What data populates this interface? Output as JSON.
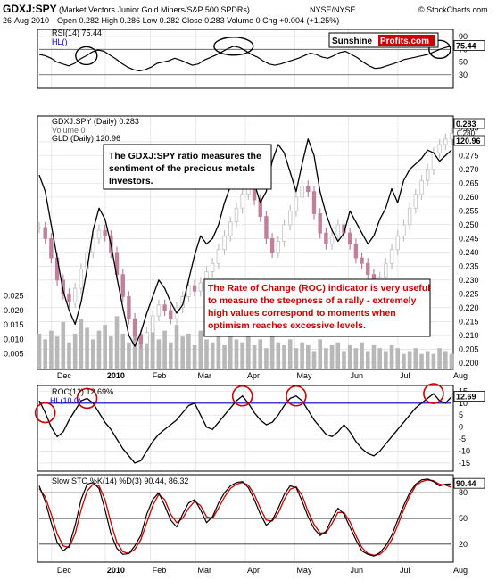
{
  "header": {
    "symbol": "GDXJ:SPY",
    "description": "(Market Vectors Junior Gold Miners/S&P 500 SPDRs)",
    "exchange": "NYSE/NYSE",
    "date": "26-Aug-2010",
    "quote": "Open 0.282  High 0.286  Low 0.282  Close 0.283  Volume 0  Chg +0.004 (+1.25%)",
    "credit": "© StockCharts.com",
    "logo_left": "Sunshine",
    "logo_right": "Profits.com"
  },
  "colors": {
    "price_up": "#c0c0c0",
    "price_down": "#c0809a",
    "gld_line": "#000000",
    "volume": "#b8b8b8",
    "hline": "#0000cc",
    "circle": "#cc0000",
    "annotation_red": "#cc0000",
    "stoch_d": "#cc0000",
    "grid": "#d8d8d8"
  },
  "annotations": {
    "ratio_note": "The GDXJ:SPY ratio measures the sentiment of the precious metals investors.",
    "roc_note": "The Rate of Change (ROC) indicator is very useful to measure the steepness of a rally - extremely high values correspond to moments when optimism reaches excessive levels."
  },
  "chart_data": [
    {
      "type": "line",
      "panel": "rsi",
      "title": "RSI(14) 75.44",
      "hl_label": "HL()",
      "ylim": [
        10,
        100
      ],
      "yticks": [
        30,
        50,
        70,
        90
      ],
      "hlines": [
        30,
        50,
        70
      ],
      "last_label": "75.44",
      "series": [
        {
          "name": "RSI(14)",
          "values": [
            62,
            60,
            56,
            50,
            47,
            44,
            48,
            55,
            60,
            66,
            69,
            67,
            61,
            55,
            48,
            42,
            38,
            36,
            38,
            42,
            48,
            50,
            52,
            56,
            53,
            49,
            45,
            47,
            53,
            57,
            61,
            66,
            71,
            75,
            73,
            68,
            62,
            58,
            52,
            47,
            45,
            47,
            50,
            53,
            56,
            60,
            64,
            62,
            58,
            56,
            60,
            65,
            67,
            62,
            57,
            50,
            44,
            40,
            41,
            44,
            47,
            50,
            54,
            56,
            58,
            60,
            62,
            66,
            70,
            73,
            75.44
          ]
        }
      ],
      "circles": [
        {
          "x_index": 8,
          "label": "dec"
        },
        {
          "x_index": 33,
          "label": "may"
        },
        {
          "x_index": 68,
          "label": "aug"
        }
      ]
    },
    {
      "type": "line",
      "panel": "price",
      "title": "GDXJ:SPY (Daily) 0.283",
      "legend": [
        "GDXJ:SPY (Daily) 0.283",
        "Volume 0",
        "GLD (Daily) 120.96"
      ],
      "ylim": [
        0.198,
        0.289
      ],
      "yticks": [
        0.2,
        0.205,
        0.21,
        0.215,
        0.22,
        0.225,
        0.23,
        0.235,
        0.24,
        0.245,
        0.25,
        0.255,
        0.26,
        0.265,
        0.27,
        0.275,
        0.28,
        0.285
      ],
      "volume_ticks": [
        0.005,
        0.01,
        0.015,
        0.02,
        0.025
      ],
      "last_labels": [
        "0.283",
        "0.280",
        "120.96"
      ],
      "x_labels": [
        "Dec",
        "2010",
        "Feb",
        "Mar",
        "Apr",
        "May",
        "Jun",
        "Jul",
        "Aug"
      ],
      "series": [
        {
          "name": "GDXJ:SPY (Daily)",
          "values": [
            0.249,
            0.245,
            0.238,
            0.23,
            0.225,
            0.222,
            0.227,
            0.234,
            0.24,
            0.245,
            0.248,
            0.246,
            0.24,
            0.232,
            0.224,
            0.216,
            0.21,
            0.207,
            0.211,
            0.217,
            0.221,
            0.219,
            0.216,
            0.22,
            0.224,
            0.228,
            0.226,
            0.229,
            0.233,
            0.236,
            0.241,
            0.246,
            0.251,
            0.256,
            0.261,
            0.266,
            0.259,
            0.253,
            0.245,
            0.24,
            0.244,
            0.25,
            0.255,
            0.26,
            0.264,
            0.262,
            0.254,
            0.247,
            0.243,
            0.246,
            0.25,
            0.247,
            0.243,
            0.238,
            0.236,
            0.232,
            0.229,
            0.231,
            0.236,
            0.241,
            0.246,
            0.25,
            0.256,
            0.261,
            0.266,
            0.27,
            0.276,
            0.279,
            0.281,
            0.283
          ]
        },
        {
          "name": "GLD (Daily)",
          "values": [
            0.268,
            0.262,
            0.25,
            0.238,
            0.226,
            0.219,
            0.214,
            0.222,
            0.234,
            0.248,
            0.256,
            0.252,
            0.243,
            0.231,
            0.22,
            0.21,
            0.206,
            0.211,
            0.218,
            0.224,
            0.23,
            0.227,
            0.222,
            0.218,
            0.221,
            0.23,
            0.239,
            0.246,
            0.243,
            0.245,
            0.25,
            0.258,
            0.264,
            0.268,
            0.274,
            0.271,
            0.265,
            0.258,
            0.262,
            0.273,
            0.279,
            0.276,
            0.269,
            0.262,
            0.272,
            0.281,
            0.275,
            0.262,
            0.254,
            0.248,
            0.244,
            0.247,
            0.255,
            0.251,
            0.247,
            0.243,
            0.246,
            0.252,
            0.256,
            0.263,
            0.258,
            0.266,
            0.27,
            0.272,
            0.274,
            0.277,
            0.276,
            0.273,
            0.275,
            0.277
          ]
        }
      ],
      "volume": [
        0.012,
        0.01,
        0.013,
        0.011,
        0.016,
        0.009,
        0.012,
        0.017,
        0.014,
        0.01,
        0.013,
        0.015,
        0.011,
        0.018,
        0.012,
        0.009,
        0.016,
        0.012,
        0.011,
        0.014,
        0.01,
        0.013,
        0.009,
        0.015,
        0.011,
        0.012,
        0.008,
        0.013,
        0.01,
        0.009,
        0.012,
        0.008,
        0.011,
        0.01,
        0.009,
        0.012,
        0.008,
        0.01,
        0.007,
        0.011,
        0.009,
        0.008,
        0.01,
        0.007,
        0.009,
        0.008,
        0.006,
        0.01,
        0.007,
        0.008,
        0.009,
        0.006,
        0.008,
        0.007,
        0.009,
        0.006,
        0.008,
        0.007,
        0.006,
        0.008,
        0.007,
        0.005,
        0.006,
        0.007,
        0.005,
        0.006,
        0.005,
        0.007,
        0.006,
        0.005
      ]
    },
    {
      "type": "line",
      "panel": "roc",
      "title": "ROC(12) 12.69%",
      "hl_label": "HL(10.0)",
      "ylim": [
        -18,
        17
      ],
      "yticks": [
        -15,
        -10,
        -5,
        0,
        5,
        10,
        15
      ],
      "hline": 10,
      "last_label": "12.69",
      "series": [
        {
          "name": "ROC(12)",
          "values": [
            11,
            6,
            0,
            -4,
            -2,
            3,
            7,
            11,
            12,
            10,
            6,
            2,
            -1,
            -5,
            -9,
            -12,
            -15,
            -14,
            -10,
            -6,
            -3,
            -1,
            1,
            3,
            6,
            9,
            10,
            5,
            0,
            -1,
            2,
            5,
            8,
            11,
            13,
            10,
            6,
            3,
            1,
            2,
            5,
            9,
            12,
            13,
            11,
            7,
            3,
            0,
            -3,
            -4,
            -2,
            1,
            -2,
            -6,
            -9,
            -11,
            -12,
            -10,
            -7,
            -4,
            -1,
            2,
            5,
            8,
            10,
            12,
            14,
            11,
            10,
            12.69
          ]
        }
      ],
      "circles": [
        {
          "x_index": 1,
          "label": "dec"
        },
        {
          "x_index": 8,
          "label": "jan"
        },
        {
          "x_index": 34,
          "label": "may"
        },
        {
          "x_index": 43,
          "label": "jun"
        },
        {
          "x_index": 66,
          "label": "aug"
        }
      ]
    },
    {
      "type": "line",
      "panel": "stoch",
      "title": "Slow STO %K(14) %D(3) 90.44, 86.32",
      "ylim": [
        0,
        100
      ],
      "yticks": [
        20,
        50,
        80
      ],
      "hlines": [
        20,
        50,
        80
      ],
      "last_label": "90.44",
      "series": [
        {
          "name": "%K(14)",
          "values": [
            88,
            70,
            45,
            22,
            12,
            18,
            42,
            72,
            90,
            92,
            85,
            60,
            32,
            15,
            8,
            9,
            18,
            30,
            55,
            72,
            80,
            65,
            48,
            40,
            55,
            68,
            72,
            60,
            45,
            52,
            68,
            80,
            88,
            92,
            93,
            86,
            72,
            55,
            42,
            48,
            62,
            78,
            88,
            86,
            70,
            52,
            38,
            30,
            35,
            50,
            62,
            55,
            40,
            25,
            12,
            8,
            6,
            10,
            18,
            30,
            48,
            65,
            80,
            90,
            95,
            96,
            93,
            88,
            90,
            90.44
          ]
        },
        {
          "name": "%D(3)",
          "values": [
            85,
            75,
            55,
            32,
            18,
            16,
            32,
            60,
            82,
            90,
            88,
            72,
            45,
            22,
            11,
            9,
            14,
            25,
            45,
            65,
            78,
            72,
            55,
            45,
            50,
            62,
            70,
            65,
            52,
            50,
            62,
            75,
            85,
            90,
            92,
            89,
            78,
            62,
            48,
            47,
            56,
            72,
            84,
            87,
            77,
            58,
            43,
            33,
            33,
            44,
            57,
            57,
            46,
            30,
            16,
            9,
            7,
            8,
            14,
            25,
            42,
            60,
            76,
            88,
            93,
            95,
            94,
            90,
            89,
            86.32
          ]
        }
      ]
    }
  ]
}
